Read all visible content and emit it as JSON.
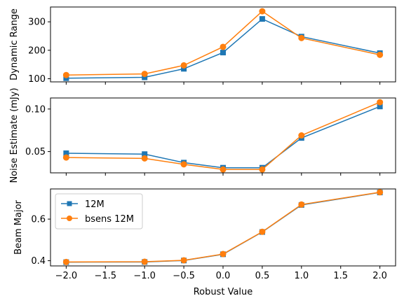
{
  "chart_data": {
    "type": "line",
    "layout": "3 vertically stacked panels sharing the x axis",
    "x": [
      -2.0,
      -1.0,
      -0.5,
      0.0,
      0.5,
      1.0,
      2.0
    ],
    "xlabel": "Robust Value",
    "xlim": [
      -2.2,
      2.2
    ],
    "xticks": [
      -2.0,
      -1.5,
      -1.0,
      -0.5,
      0.0,
      0.5,
      1.0,
      1.5,
      2.0
    ],
    "xtick_labels": [
      "−2.0",
      "−1.5",
      "−1.0",
      "−0.5",
      "0.0",
      "0.5",
      "1.0",
      "1.5",
      "2.0"
    ],
    "legend": {
      "panel": 3,
      "placement": "upper-left",
      "entries": [
        "12M",
        "bsens 12M"
      ]
    },
    "panels": [
      {
        "ylabel": "Dynamic Range",
        "ylim": [
          89,
          352
        ],
        "yticks": [
          100,
          200,
          300
        ],
        "ytick_labels": [
          "100",
          "200",
          "300"
        ],
        "series": [
          {
            "name": "12M",
            "marker": "square",
            "color": "#1f77b4",
            "values": [
              102,
              105,
              135,
              192,
              310,
              248,
              190
            ]
          },
          {
            "name": "bsens 12M",
            "marker": "circle",
            "color": "#ff7f0e",
            "values": [
              113,
              117,
              147,
              212,
              337,
              243,
              184
            ]
          }
        ]
      },
      {
        "ylabel": "Noise Estimate (mJy)",
        "ylim": [
          0.025,
          0.113
        ],
        "yticks": [
          0.05,
          0.1
        ],
        "ytick_labels": [
          "0.05",
          "0.10"
        ],
        "series": [
          {
            "name": "12M",
            "marker": "square",
            "color": "#1f77b4",
            "values": [
              0.048,
              0.047,
              0.037,
              0.031,
              0.031,
              0.066,
              0.103
            ]
          },
          {
            "name": "bsens 12M",
            "marker": "circle",
            "color": "#ff7f0e",
            "values": [
              0.043,
              0.042,
              0.035,
              0.029,
              0.029,
              0.069,
              0.108
            ]
          }
        ]
      },
      {
        "ylabel": "Beam Major",
        "ylim": [
          0.375,
          0.745
        ],
        "yticks": [
          0.4,
          0.6
        ],
        "ytick_labels": [
          "0.4",
          "0.6"
        ],
        "series": [
          {
            "name": "12M",
            "marker": "square",
            "color": "#1f77b4",
            "values": [
              0.393,
              0.394,
              0.401,
              0.431,
              0.538,
              0.668,
              0.728
            ]
          },
          {
            "name": "bsens 12M",
            "marker": "circle",
            "color": "#ff7f0e",
            "values": [
              0.394,
              0.395,
              0.402,
              0.432,
              0.539,
              0.67,
              0.729
            ]
          }
        ]
      }
    ]
  }
}
